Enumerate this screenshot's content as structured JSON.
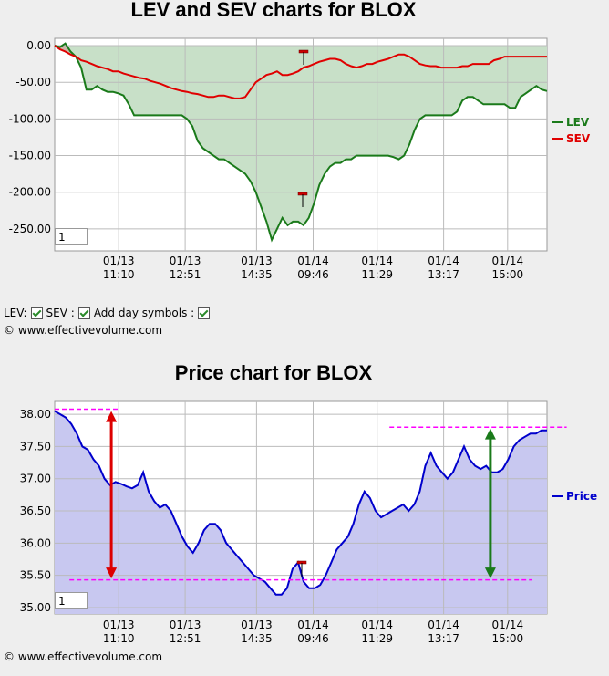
{
  "chart_data": [
    {
      "type": "area",
      "title": "LEV and SEV charts for BLOX",
      "ylim": [
        -280,
        10
      ],
      "yticks": [
        "0.00",
        "-50.00",
        "-100.00",
        "-150.00",
        "-200.00",
        "-250.00"
      ],
      "ytick_values": [
        0,
        -50,
        -100,
        -150,
        -200,
        -250
      ],
      "xticks": [
        "01/13\n11:10",
        "01/13\n12:51",
        "01/13\n14:35",
        "01/14\n09:46",
        "01/14\n11:29",
        "01/14\n13:17",
        "01/14\n15:00"
      ],
      "legend": "right",
      "grid": true,
      "series": [
        {
          "name": "LEV",
          "color": "#1a7a1a",
          "fill": "#c8e0c8",
          "values": [
            0,
            -2,
            3,
            -8,
            -15,
            -30,
            -60,
            -60,
            -55,
            -60,
            -63,
            -63,
            -65,
            -68,
            -80,
            -95,
            -95,
            -95,
            -95,
            -95,
            -95,
            -95,
            -95,
            -95,
            -95,
            -100,
            -110,
            -130,
            -140,
            -145,
            -150,
            -155,
            -155,
            -160,
            -165,
            -170,
            -175,
            -185,
            -200,
            -220,
            -240,
            -265,
            -250,
            -235,
            -245,
            -240,
            -240,
            -245,
            -235,
            -215,
            -190,
            -175,
            -165,
            -160,
            -160,
            -155,
            -155,
            -150,
            -150,
            -150,
            -150,
            -150,
            -150,
            -150,
            -152,
            -155,
            -150,
            -135,
            -115,
            -100,
            -95,
            -95,
            -95,
            -95,
            -95,
            -95,
            -90,
            -75,
            -70,
            -70,
            -75,
            -80,
            -80,
            -80,
            -80,
            -80,
            -85,
            -85,
            -70,
            -65,
            -60,
            -55,
            -60,
            -62
          ]
        },
        {
          "name": "SEV",
          "color": "#e00000",
          "fill": "#c8b8a8",
          "values": [
            0,
            -5,
            -8,
            -12,
            -15,
            -20,
            -22,
            -25,
            -28,
            -30,
            -32,
            -35,
            -35,
            -38,
            -40,
            -42,
            -44,
            -45,
            -48,
            -50,
            -52,
            -55,
            -58,
            -60,
            -62,
            -63,
            -65,
            -66,
            -68,
            -70,
            -70,
            -68,
            -68,
            -70,
            -72,
            -72,
            -70,
            -60,
            -50,
            -45,
            -40,
            -38,
            -35,
            -40,
            -40,
            -38,
            -35,
            -30,
            -28,
            -25,
            -22,
            -20,
            -18,
            -18,
            -20,
            -25,
            -28,
            -30,
            -28,
            -25,
            -25,
            -22,
            -20,
            -18,
            -15,
            -12,
            -12,
            -15,
            -20,
            -25,
            -27,
            -28,
            -28,
            -30,
            -30,
            -30,
            -30,
            -28,
            -28,
            -25,
            -25,
            -25,
            -25,
            -20,
            -18,
            -15,
            -15,
            -15,
            -15,
            -15,
            -15,
            -15,
            -15,
            -15
          ]
        }
      ],
      "range_box": "1"
    },
    {
      "type": "area",
      "title": "Price chart for BLOX",
      "ylim": [
        34.9,
        38.2
      ],
      "yticks": [
        "38.00",
        "37.50",
        "37.00",
        "36.50",
        "36.00",
        "35.50",
        "35.00"
      ],
      "ytick_values": [
        38.0,
        37.5,
        37.0,
        36.5,
        36.0,
        35.5,
        35.0
      ],
      "xticks": [
        "01/13\n11:10",
        "01/13\n12:51",
        "01/13\n14:35",
        "01/14\n09:46",
        "01/14\n11:29",
        "01/14\n13:17",
        "01/14\n15:00"
      ],
      "legend": "right",
      "grid": true,
      "series": [
        {
          "name": "Price",
          "color": "#0000cc",
          "fill": "#c8c8f0",
          "values": [
            38.05,
            38.0,
            37.95,
            37.85,
            37.7,
            37.5,
            37.45,
            37.3,
            37.2,
            37.0,
            36.9,
            36.95,
            36.92,
            36.88,
            36.85,
            36.9,
            37.1,
            36.8,
            36.65,
            36.55,
            36.6,
            36.5,
            36.3,
            36.1,
            35.95,
            35.85,
            36.0,
            36.2,
            36.3,
            36.3,
            36.2,
            36.0,
            35.9,
            35.8,
            35.7,
            35.6,
            35.5,
            35.45,
            35.4,
            35.3,
            35.2,
            35.2,
            35.3,
            35.6,
            35.7,
            35.4,
            35.3,
            35.3,
            35.35,
            35.5,
            35.7,
            35.9,
            36.0,
            36.1,
            36.3,
            36.6,
            36.8,
            36.7,
            36.5,
            36.4,
            36.45,
            36.5,
            36.55,
            36.6,
            36.5,
            36.6,
            36.8,
            37.2,
            37.4,
            37.2,
            37.1,
            37.0,
            37.1,
            37.3,
            37.5,
            37.3,
            37.2,
            37.15,
            37.2,
            37.1,
            37.1,
            37.15,
            37.3,
            37.5,
            37.6,
            37.65,
            37.7,
            37.7,
            37.75,
            37.75
          ],
          "annotations": [
            {
              "type": "line",
              "color": "#ff00ff",
              "y": 38.08,
              "x_from": 0.0,
              "x_to": 0.13
            },
            {
              "type": "line",
              "color": "#ff00ff",
              "y": 35.43,
              "x_from": 0.03,
              "x_to": 0.97
            },
            {
              "type": "line",
              "color": "#ff00ff",
              "y": 37.8,
              "x_from": 0.68,
              "x_to": 1.04
            },
            {
              "type": "arrow",
              "color": "#dd0000",
              "y_from": 38.05,
              "y_to": 35.45,
              "x": 0.115
            },
            {
              "type": "arrow",
              "color": "#1a7a1a",
              "y_from": 37.78,
              "y_to": 35.45,
              "x": 0.885
            }
          ]
        }
      ],
      "range_box": "1"
    }
  ],
  "controls": {
    "lev_label": "LEV:",
    "sev_label": "SEV :",
    "day_label": "Add day symbols :"
  },
  "copyright": "© www.effectivevolume.com"
}
